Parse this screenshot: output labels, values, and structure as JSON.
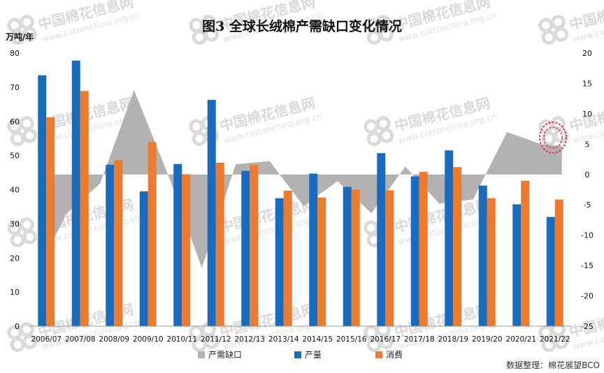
{
  "chart_data": {
    "type": "bar",
    "title": "图3 全球长绒棉产需缺口变化情况",
    "ylabel": "万吨/年",
    "categories": [
      "2006/07",
      "2007/08",
      "2008/09",
      "2009/10",
      "2010/11",
      "2011/12",
      "2012/13",
      "2013/14",
      "2014/15",
      "2015/16",
      "2016/17",
      "2017/18",
      "2018/19",
      "2019/20",
      "2020/21",
      "2021/22"
    ],
    "ylim": [
      0,
      80
    ],
    "y2lim": [
      -25,
      20
    ],
    "yticks": [
      0,
      10,
      20,
      30,
      40,
      50,
      60,
      70,
      80
    ],
    "y2ticks": [
      -25,
      -20,
      -15,
      -10,
      -5,
      0,
      5,
      10,
      15,
      20
    ],
    "series": [
      {
        "name": "产需缺口",
        "type": "area",
        "axis": "right",
        "color": "#b3b1b1",
        "values": [
          -11.8,
          -6.5,
          -1.5,
          13.9,
          0,
          -15.4,
          1.7,
          2.2,
          -5.2,
          -1.1,
          -6.4,
          1.3,
          -4.8,
          -4.1,
          7.0,
          5.0
        ]
      },
      {
        "name": "产量",
        "type": "bar",
        "axis": "left",
        "color": "#1a6bbd",
        "values": [
          73.5,
          77.8,
          47.3,
          39.5,
          47.5,
          66.3,
          45.5,
          37.5,
          44.7,
          40.8,
          50.7,
          43.9,
          51.5,
          41.2,
          35.7,
          32.0
        ]
      },
      {
        "name": "消费",
        "type": "bar",
        "axis": "left",
        "color": "#ec7b2f",
        "values": [
          61.2,
          68.9,
          48.6,
          53.9,
          44.5,
          47.9,
          47.3,
          39.7,
          37.7,
          40.0,
          39.8,
          45.2,
          46.6,
          37.5,
          42.6,
          37.1
        ]
      }
    ],
    "grid": false,
    "legend": "bottom"
  },
  "source": "数据整理：棉花展望BCO",
  "watermark": {
    "text": "中国棉花信息网",
    "url": "www.cottonchina.org.cn"
  }
}
